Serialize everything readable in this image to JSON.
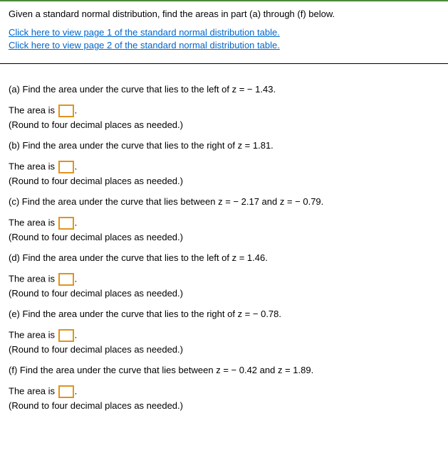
{
  "header": {
    "intro": "Given a standard normal distribution, find the areas in part (a) through (f) below.",
    "link1": "Click here to view page 1 of the standard normal distribution table.",
    "link2": "Click here to view page 2 of the standard normal distribution table."
  },
  "common": {
    "area_prefix": "The area is",
    "period": ".",
    "hint": "(Round to four decimal places as needed.)"
  },
  "parts": {
    "a": {
      "prompt": "(a) Find the area under the curve that lies to the left of z = − 1.43."
    },
    "b": {
      "prompt": "(b) Find the area under the curve that lies to the right of z = 1.81."
    },
    "c": {
      "prompt": "(c) Find the area under the curve that lies between z = − 2.17 and z = − 0.79."
    },
    "d": {
      "prompt": "(d) Find the area under the curve that lies to the left of z = 1.46."
    },
    "e": {
      "prompt": "(e) Find the area under the curve that lies to the right of z = − 0.78."
    },
    "f": {
      "prompt": "(f) Find the area under the curve that lies between z = − 0.42 and z = 1.89."
    }
  }
}
